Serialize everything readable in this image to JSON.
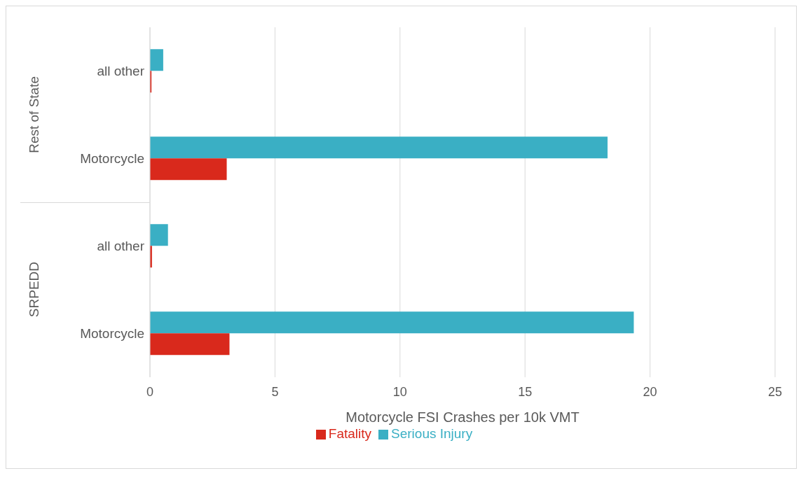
{
  "chart_data": {
    "type": "bar",
    "orientation": "horizontal",
    "xlabel": "Motorcycle FSI Crashes per 10k VMT",
    "categories": [
      "all other",
      "Motorcycle",
      "all other",
      "Motorcycle"
    ],
    "annotations": [
      "Rest of State",
      "SRPEDD"
    ],
    "series": [
      {
        "name": "Serious Injury",
        "color": "#3aafc4",
        "values": [
          0.53,
          18.3,
          0.72,
          19.35
        ]
      },
      {
        "name": "Fatality",
        "color": "#d9291c",
        "values": [
          0.06,
          3.07,
          0.08,
          3.18
        ]
      }
    ],
    "xlim": [
      0,
      25
    ],
    "xticks": [
      0,
      5,
      10,
      15,
      20,
      25
    ],
    "grid": "x",
    "legend": "bottom"
  }
}
